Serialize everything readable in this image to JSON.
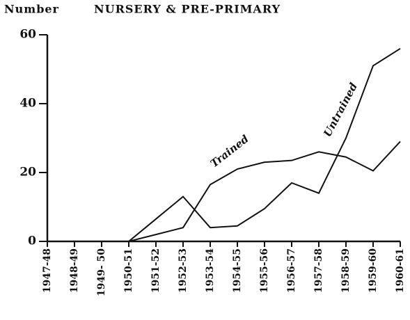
{
  "chart_data": {
    "type": "line",
    "title": "NURSERY & PRE-PRIMARY",
    "y_label": "Number",
    "categories": [
      "1947-48",
      "1948-49",
      "1949- 50",
      "1950-51",
      "1951-52",
      "1952-53",
      "1953-54",
      "1954-55",
      "1955-56",
      "1956-57",
      "1957-58",
      "1958-59",
      "1959-60",
      "1960-61"
    ],
    "series": [
      {
        "name": "Trained",
        "color": "#111111",
        "values": [
          0,
          0,
          0,
          0,
          2,
          4,
          16.5,
          21,
          23,
          23.5,
          26,
          24.5,
          20.5,
          29
        ]
      },
      {
        "name": "Untrained",
        "color": "#111111",
        "values": [
          0,
          0,
          0,
          0,
          6.5,
          13,
          4,
          4.5,
          9.5,
          17,
          14,
          30,
          51,
          56
        ]
      }
    ],
    "ylim": [
      0,
      60
    ],
    "yticks": [
      0,
      20,
      40,
      60
    ],
    "grid": false
  }
}
